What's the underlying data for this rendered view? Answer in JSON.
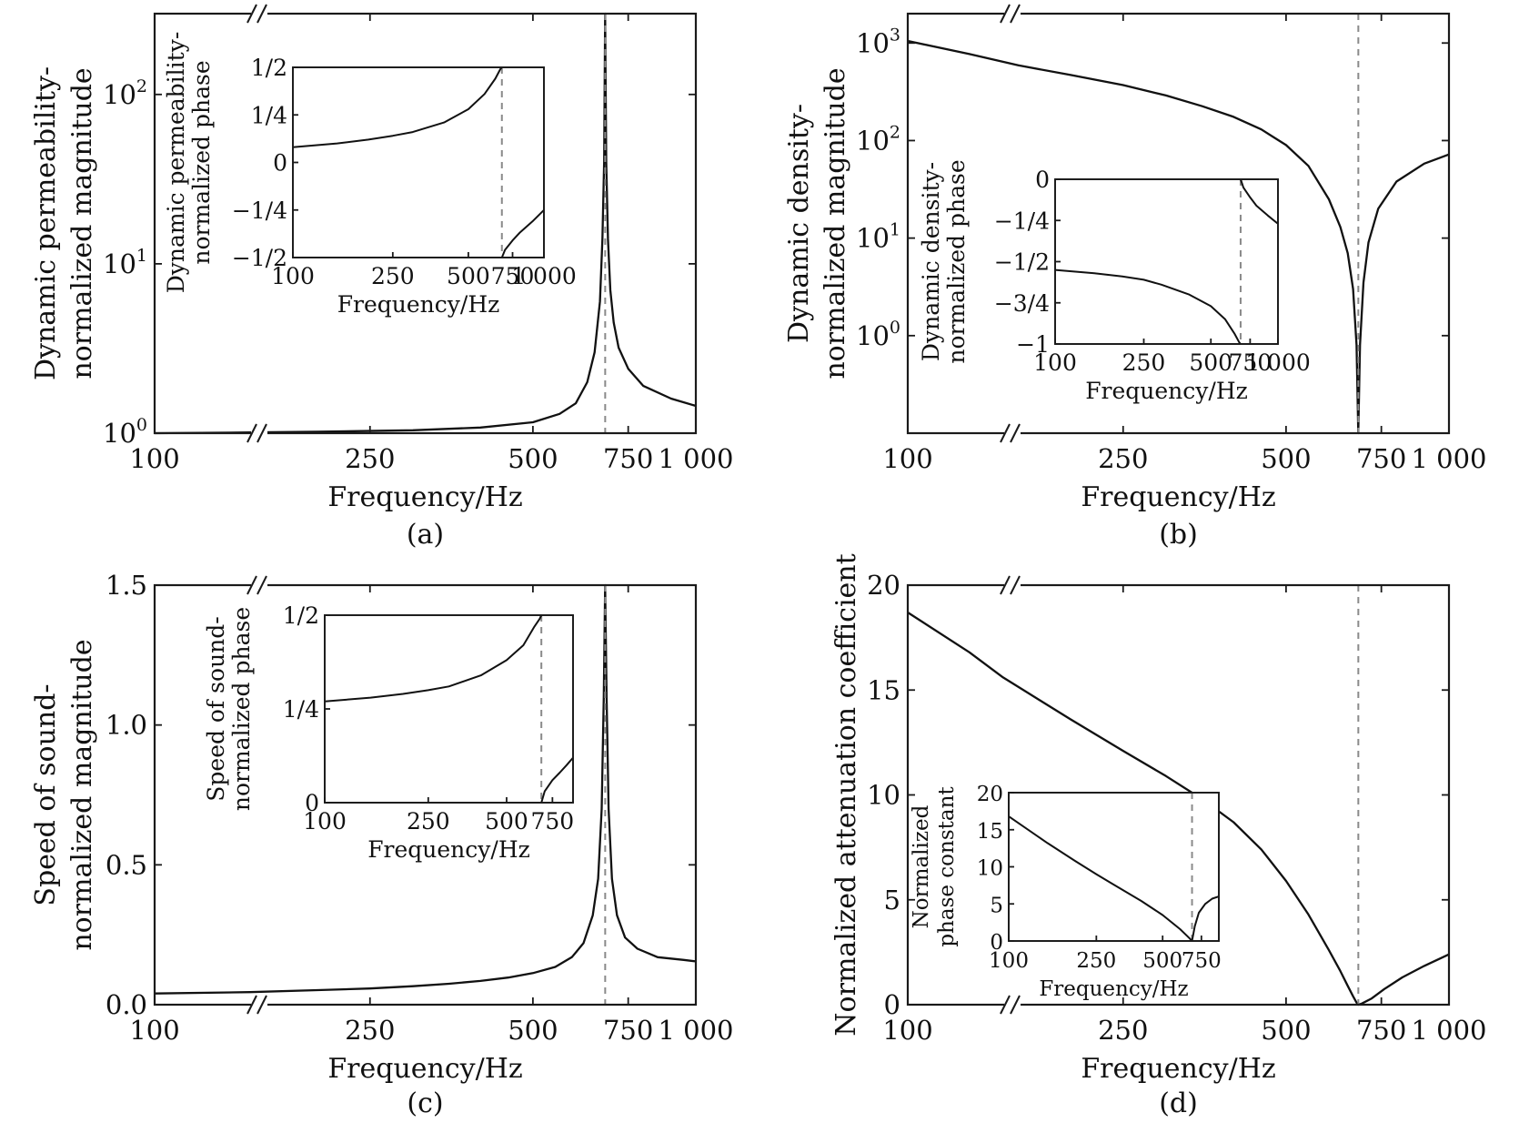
{
  "chart_data": [
    {
      "id": "a",
      "type": "line",
      "caption": "(a)",
      "xlabel": "Frequency/Hz",
      "ylabel": [
        "Dynamic permeability-",
        "normalized magnitude"
      ],
      "xscale": "log",
      "yscale": "log",
      "xlim": [
        100,
        1000
      ],
      "ylim": [
        1,
        300
      ],
      "xticks": [
        100,
        250,
        500,
        750,
        1000
      ],
      "xtick_labels": [
        "100",
        "250",
        "500",
        "750",
        "1 000"
      ],
      "yticks": [
        1,
        10,
        100
      ],
      "ytick_labels": [
        {
          "base": "10",
          "exp": "0"
        },
        {
          "base": "10",
          "exp": "1"
        },
        {
          "base": "10",
          "exp": "2"
        }
      ],
      "axis_break": true,
      "resonance_hz": 680,
      "series": [
        {
          "x": [
            100,
            150,
            200,
            300,
            400,
            500,
            560,
            600,
            630,
            650,
            665,
            672,
            677,
            680,
            683,
            688,
            695,
            705,
            720,
            750,
            800,
            900,
            1000
          ],
          "y": [
            1.0,
            1.01,
            1.02,
            1.04,
            1.08,
            1.16,
            1.3,
            1.5,
            2.0,
            3.0,
            6.0,
            14,
            40,
            300,
            40,
            14,
            7,
            4.5,
            3.2,
            2.4,
            1.9,
            1.6,
            1.45
          ]
        }
      ],
      "inset": {
        "xlabel": "Frequency/Hz",
        "ylabel": [
          "Dynamic permeability-",
          "normalized phase"
        ],
        "xscale": "log",
        "xlim": [
          100,
          1000
        ],
        "ylim": [
          -0.5,
          0.5
        ],
        "xticks": [
          100,
          250,
          500,
          750,
          1000
        ],
        "xtick_labels": [
          "100",
          "250",
          "500",
          "750",
          "1 000"
        ],
        "yticks": [
          0.5,
          0.25,
          0,
          -0.25,
          -0.5
        ],
        "ytick_labels": [
          "1/2",
          "1/4",
          "0",
          "−1/4",
          "−1/2"
        ],
        "series": [
          {
            "x": [
              100,
              150,
              200,
              250,
              300,
              400,
              500,
              580,
              640,
              670,
              680
            ],
            "y": [
              0.08,
              0.1,
              0.12,
              0.14,
              0.16,
              0.21,
              0.28,
              0.36,
              0.44,
              0.49,
              0.5
            ]
          },
          {
            "x": [
              680,
              700,
              750,
              800,
              900,
              1000
            ],
            "y": [
              -0.5,
              -0.46,
              -0.41,
              -0.37,
              -0.31,
              -0.25
            ]
          }
        ]
      }
    },
    {
      "id": "b",
      "type": "line",
      "caption": "(b)",
      "xlabel": "Frequency/Hz",
      "ylabel": [
        "Dynamic density-",
        "normalized magnitude"
      ],
      "xscale": "log",
      "yscale": "log",
      "xlim": [
        100,
        1000
      ],
      "ylim": [
        0.1,
        2000
      ],
      "xticks": [
        100,
        250,
        500,
        750,
        1000
      ],
      "xtick_labels": [
        "100",
        "250",
        "500",
        "750",
        "1 000"
      ],
      "yticks": [
        1,
        10,
        100,
        1000
      ],
      "ytick_labels": [
        {
          "base": "10",
          "exp": "0"
        },
        {
          "base": "10",
          "exp": "1"
        },
        {
          "base": "10",
          "exp": "2"
        },
        {
          "base": "10",
          "exp": "3"
        }
      ],
      "axis_break": true,
      "resonance_hz": 680,
      "series": [
        {
          "x": [
            100,
            130,
            160,
            200,
            250,
            300,
            350,
            400,
            450,
            500,
            550,
            600,
            630,
            650,
            665,
            675,
            680,
            685,
            695,
            710,
            740,
            800,
            900,
            1000
          ],
          "y": [
            1050,
            770,
            590,
            470,
            370,
            290,
            225,
            175,
            130,
            90,
            55,
            25,
            13,
            7,
            3,
            0.8,
            0.1,
            0.8,
            3.5,
            9,
            20,
            38,
            58,
            72
          ]
        }
      ],
      "inset": {
        "xlabel": "Frequency/Hz",
        "ylabel": [
          "Dynamic density-",
          "normalized phase"
        ],
        "xscale": "log",
        "xlim": [
          100,
          1000
        ],
        "ylim": [
          -1,
          0
        ],
        "xticks": [
          100,
          250,
          500,
          750,
          1000
        ],
        "xtick_labels": [
          "100",
          "250",
          "500",
          "750",
          "1 000"
        ],
        "yticks": [
          0,
          -0.25,
          -0.5,
          -0.75,
          -1
        ],
        "ytick_labels": [
          "0",
          "−1/4",
          "−1/2",
          "−3/4",
          "−1"
        ],
        "series": [
          {
            "x": [
              100,
              150,
              200,
              250,
              300,
              400,
              500,
              580,
              640,
              670,
              680
            ],
            "y": [
              -0.55,
              -0.57,
              -0.59,
              -0.61,
              -0.64,
              -0.7,
              -0.77,
              -0.85,
              -0.94,
              -0.99,
              -1.0
            ]
          },
          {
            "x": [
              680,
              700,
              750,
              800,
              900,
              1000
            ],
            "y": [
              0,
              -0.05,
              -0.11,
              -0.16,
              -0.22,
              -0.27
            ]
          }
        ]
      }
    },
    {
      "id": "c",
      "type": "line",
      "caption": "(c)",
      "xlabel": "Frequency/Hz",
      "ylabel": [
        "Speed of sound-",
        "normalized magnitude"
      ],
      "xscale": "log",
      "yscale": "linear",
      "xlim": [
        100,
        1000
      ],
      "ylim": [
        0,
        1.5
      ],
      "xticks": [
        100,
        250,
        500,
        750,
        1000
      ],
      "xtick_labels": [
        "100",
        "250",
        "500",
        "750",
        "1 000"
      ],
      "yticks": [
        0,
        0.5,
        1.0,
        1.5
      ],
      "ytick_labels": [
        "0.0",
        "0.5",
        "1.0",
        "1.5"
      ],
      "axis_break": true,
      "resonance_hz": 680,
      "series": [
        {
          "x": [
            100,
            150,
            200,
            250,
            300,
            350,
            400,
            450,
            500,
            550,
            590,
            620,
            645,
            660,
            670,
            676,
            680,
            684,
            690,
            700,
            715,
            740,
            780,
            850,
            950,
            1000
          ],
          "y": [
            0.04,
            0.045,
            0.052,
            0.058,
            0.066,
            0.075,
            0.085,
            0.097,
            0.113,
            0.135,
            0.17,
            0.22,
            0.32,
            0.45,
            0.7,
            1.1,
            1.5,
            1.1,
            0.7,
            0.45,
            0.32,
            0.24,
            0.2,
            0.17,
            0.16,
            0.155
          ]
        }
      ],
      "inset": {
        "xlabel": "Frequency/Hz",
        "ylabel": [
          "Speed of sound-",
          "normalized phase"
        ],
        "xscale": "log",
        "xlim": [
          100,
          900
        ],
        "ylim": [
          0,
          0.5
        ],
        "xticks": [
          100,
          250,
          500,
          750
        ],
        "xtick_labels": [
          "100",
          "250",
          "500",
          "750"
        ],
        "yticks": [
          0.5,
          0.25,
          0
        ],
        "ytick_labels": [
          "1/2",
          "1/4",
          "0"
        ],
        "series": [
          {
            "x": [
              100,
              150,
              200,
              250,
              300,
              400,
              500,
              580,
              640,
              670,
              680
            ],
            "y": [
              0.27,
              0.28,
              0.29,
              0.3,
              0.31,
              0.34,
              0.38,
              0.42,
              0.47,
              0.49,
              0.5
            ]
          },
          {
            "x": [
              680,
              700,
              750,
              800,
              850,
              900
            ],
            "y": [
              0,
              0.03,
              0.06,
              0.08,
              0.1,
              0.12
            ]
          }
        ]
      }
    },
    {
      "id": "d",
      "type": "line",
      "caption": "(d)",
      "xlabel": "Frequency/Hz",
      "ylabel": [
        "Normalized attenuation coefficient"
      ],
      "xscale": "log",
      "yscale": "linear",
      "xlim": [
        100,
        1000
      ],
      "ylim": [
        0,
        20
      ],
      "xticks": [
        100,
        250,
        500,
        750,
        1000
      ],
      "xtick_labels": [
        "100",
        "250",
        "500",
        "750",
        "1 000"
      ],
      "yticks": [
        0,
        5,
        10,
        15,
        20
      ],
      "ytick_labels": [
        "0",
        "5",
        "10",
        "15",
        "20"
      ],
      "axis_break": true,
      "resonance_hz": 680,
      "series": [
        {
          "x": [
            100,
            130,
            150,
            200,
            250,
            300,
            350,
            400,
            450,
            500,
            550,
            600,
            630,
            650,
            665,
            675,
            680,
            690,
            720,
            760,
            820,
            900,
            1000
          ],
          "y": [
            18.7,
            16.8,
            15.6,
            13.6,
            12.1,
            10.9,
            9.8,
            8.7,
            7.4,
            5.9,
            4.3,
            2.6,
            1.6,
            0.9,
            0.4,
            0.1,
            0,
            0.05,
            0.3,
            0.75,
            1.3,
            1.85,
            2.4
          ]
        }
      ],
      "inset": {
        "xlabel": "Frequency/Hz",
        "ylabel": [
          "Normalized",
          "phase constant"
        ],
        "xscale": "log",
        "xlim": [
          100,
          900
        ],
        "ylim": [
          0,
          20
        ],
        "xticks": [
          100,
          250,
          500,
          750
        ],
        "xtick_labels": [
          "100",
          "250",
          "500",
          "750"
        ],
        "yticks": [
          0,
          5,
          10,
          15,
          20
        ],
        "ytick_labels": [
          "0",
          "5",
          "10",
          "15",
          "20"
        ],
        "series": [
          {
            "x": [
              100,
              150,
              200,
              250,
              300,
              400,
              500,
              600,
              660,
              680
            ],
            "y": [
              16.8,
              13.2,
              10.8,
              9.0,
              7.6,
              5.4,
              3.5,
              1.6,
              0.4,
              0
            ]
          },
          {
            "x": [
              680,
              700,
              730,
              780,
              840,
              900
            ],
            "y": [
              0,
              2.0,
              3.8,
              5.0,
              5.7,
              6.0
            ]
          }
        ]
      }
    }
  ]
}
